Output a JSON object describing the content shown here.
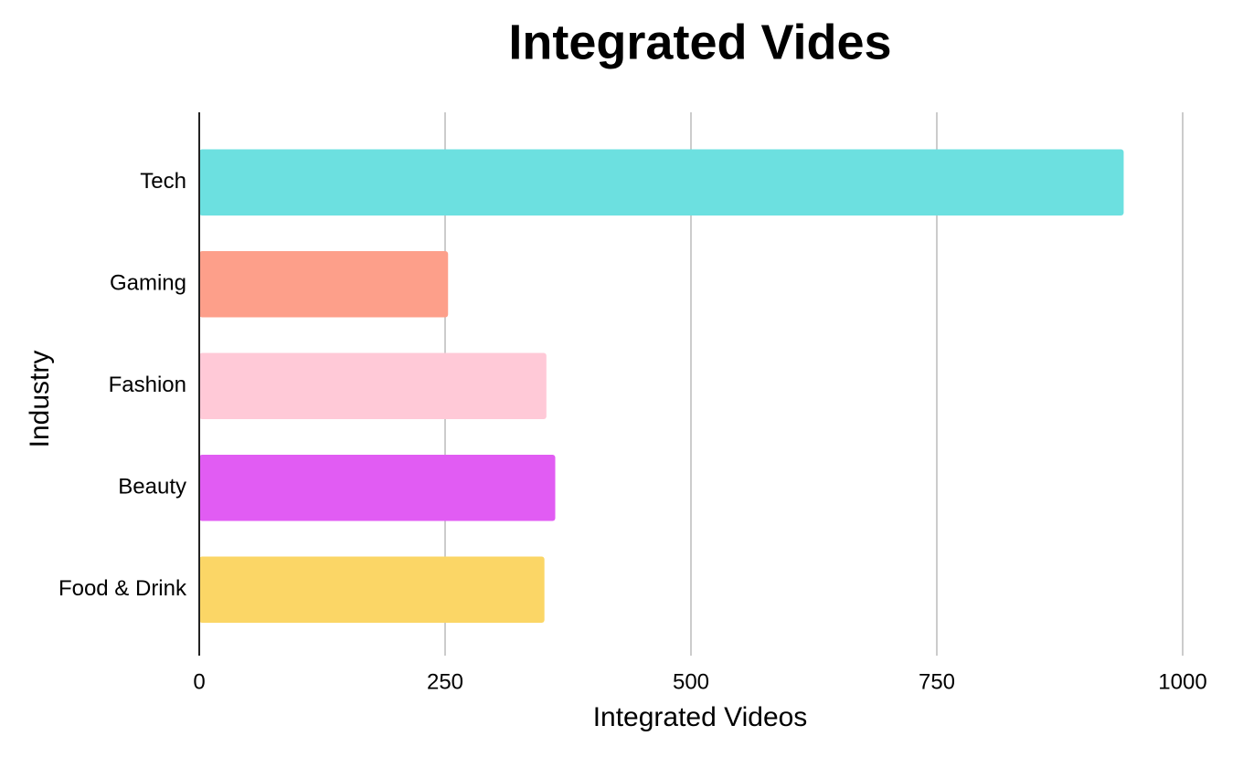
{
  "chart_data": {
    "type": "barh",
    "title": "Integrated Vides",
    "x_label": "Integrated Videos",
    "y_label": "Industry",
    "categories": [
      "Tech",
      "Gaming",
      "Fashion",
      "Beauty",
      "Food & Drink"
    ],
    "values": [
      940,
      253,
      353,
      362,
      351
    ],
    "colors": [
      "#6ce0e0",
      "#fd9f8a",
      "#ffc9d7",
      "#e15cf3",
      "#fbd666"
    ],
    "xlim": [
      0,
      1000
    ],
    "xticks": [
      0,
      250,
      500,
      750,
      1000
    ],
    "grid": true
  }
}
